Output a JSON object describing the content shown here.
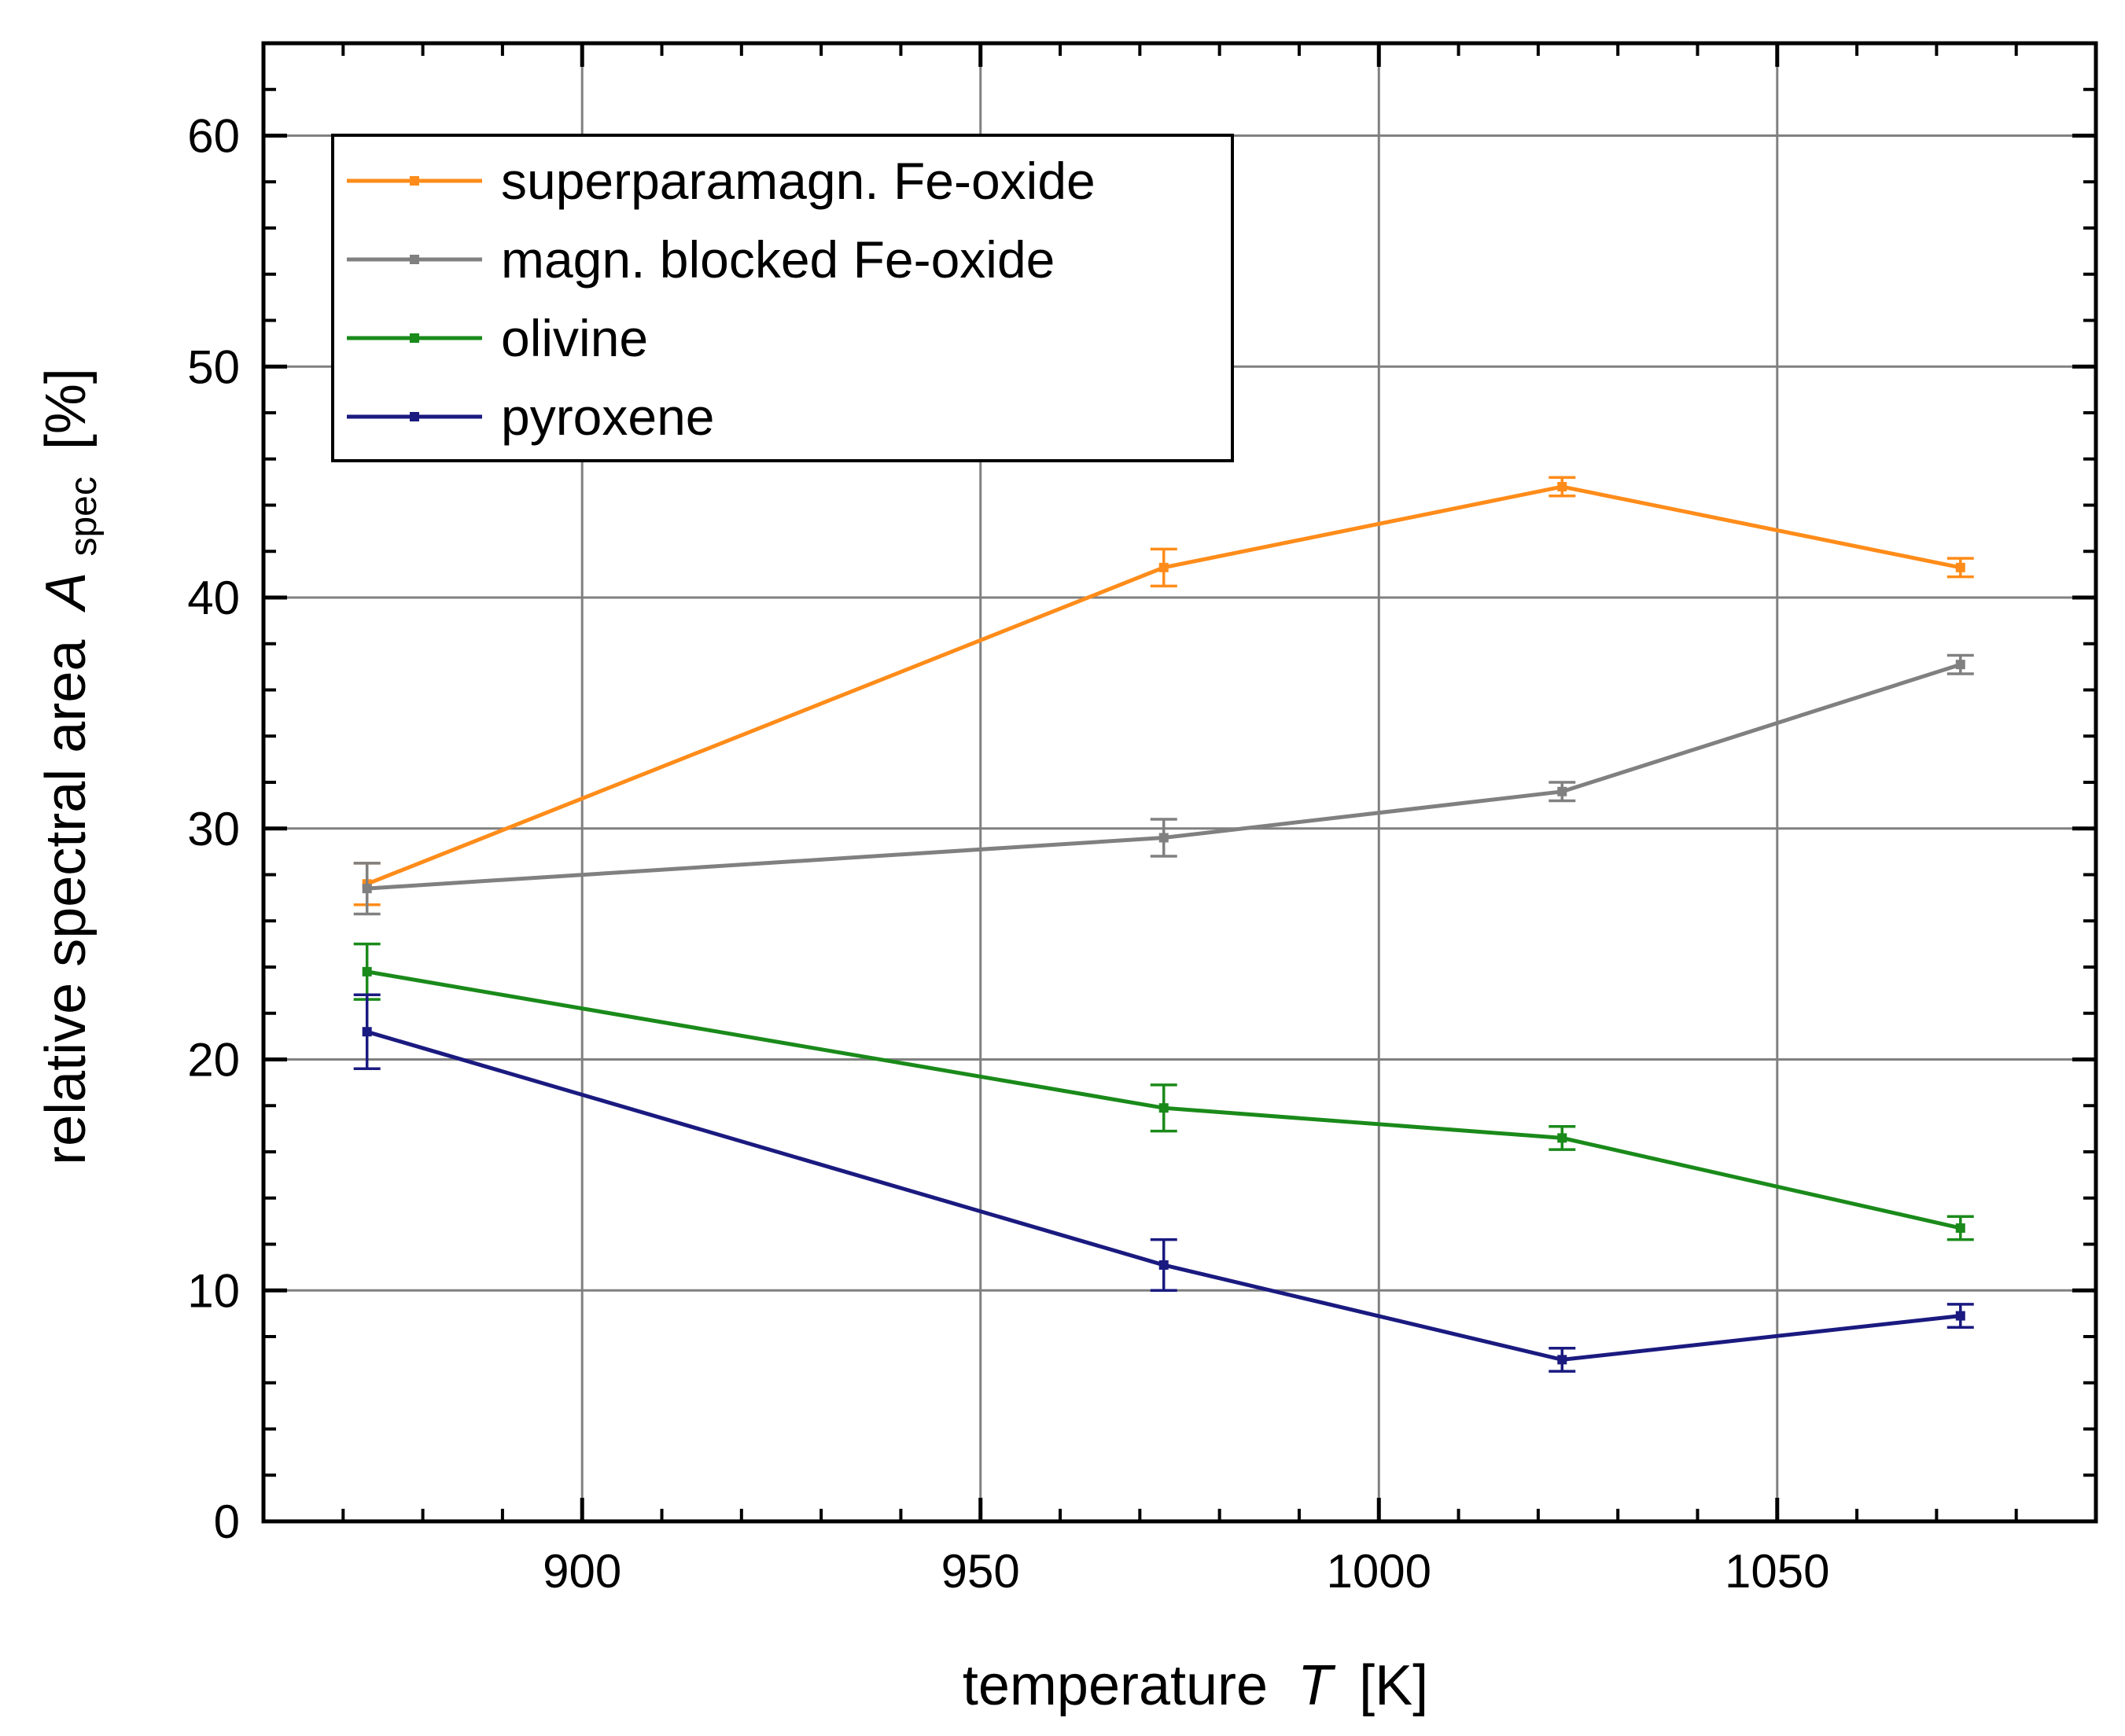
{
  "chart_data": {
    "type": "line",
    "title": "",
    "xlabel": "temperature",
    "xlabel_symbol": "T",
    "xlabel_unit": "[K]",
    "ylabel": "relative spectral area",
    "ylabel_symbol": "A",
    "ylabel_subscript": "spec",
    "ylabel_unit": "[%]",
    "xlim": [
      860,
      1090
    ],
    "ylim": [
      0,
      64
    ],
    "grid": true,
    "legend_position": "top-left",
    "x_ticks": [
      900,
      950,
      1000,
      1050
    ],
    "x_tick_labels": [
      "900",
      "950",
      "1000",
      "1050"
    ],
    "y_ticks": [
      0,
      10,
      20,
      30,
      40,
      50,
      60
    ],
    "y_tick_labels": [
      "0",
      "10",
      "20",
      "30",
      "40",
      "50",
      "60"
    ],
    "x": [
      873,
      973,
      1023,
      1073
    ],
    "series": [
      {
        "name": "superparamagn. Fe-oxide",
        "color": "#ff8c1a",
        "values": [
          27.6,
          41.3,
          44.8,
          41.3
        ],
        "errors": [
          0.9,
          0.8,
          0.4,
          0.4
        ]
      },
      {
        "name": "magn. blocked Fe-oxide",
        "color": "#808080",
        "values": [
          27.4,
          29.6,
          31.6,
          37.1
        ],
        "errors": [
          1.1,
          0.8,
          0.4,
          0.4
        ]
      },
      {
        "name": "olivine",
        "color": "#1a8a1a",
        "values": [
          23.8,
          17.9,
          16.6,
          12.7
        ],
        "errors": [
          1.2,
          1.0,
          0.5,
          0.5
        ]
      },
      {
        "name": "pyroxene",
        "color": "#1a1a80",
        "values": [
          21.2,
          11.1,
          7.0,
          8.9
        ],
        "errors": [
          1.6,
          1.1,
          0.5,
          0.5
        ]
      }
    ]
  }
}
